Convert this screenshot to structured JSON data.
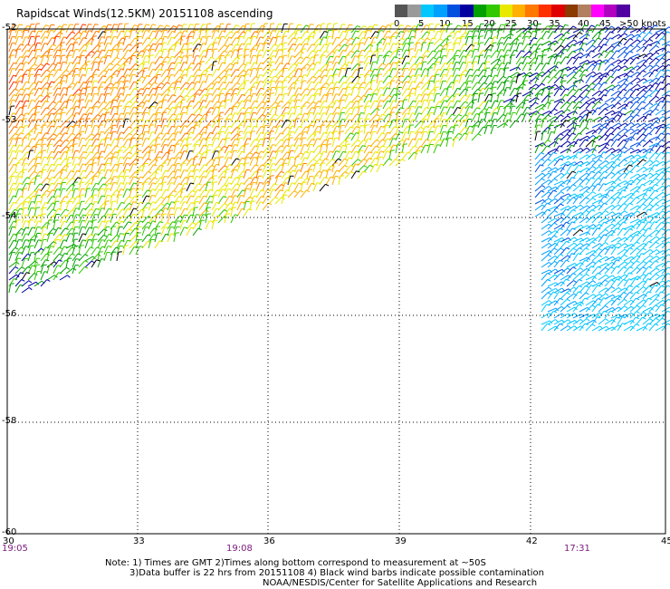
{
  "title": "Rapidscat Winds(12.5KM) 20151108 ascending",
  "colorbar": {
    "colors": [
      "#555555",
      "#9a9a9a",
      "#00c8ff",
      "#00a0ff",
      "#0050e0",
      "#0000a0",
      "#00a000",
      "#30c800",
      "#e8e800",
      "#ffb000",
      "#ff7800",
      "#ff3000",
      "#e00000",
      "#8b3a00",
      "#b08060",
      "#ff00ff",
      "#b000c0",
      "#5000a0"
    ],
    "labels": [
      "0",
      "5",
      "10",
      "15",
      "20",
      "25",
      "30",
      "35",
      "40",
      "45",
      ">50 knots"
    ],
    "unit": "knots"
  },
  "axes": {
    "lat_labels": [
      "-52",
      "-53",
      "-54",
      "-56",
      "-58",
      "-60"
    ],
    "lon_labels": [
      "30",
      "33",
      "36",
      "39",
      "42",
      "45"
    ],
    "time_labels": [
      "19:05",
      "19:08",
      "17:31"
    ]
  },
  "notes": {
    "line1": "Note: 1) Times are GMT 2)Times along bottom correspond to measurement at ~50S",
    "line2": "3)Data buffer is 22 hrs from 20151108 4) Black wind barbs indicate possible contamination",
    "line3": "NOAA/NESDIS/Center for Satellite Applications and Research"
  },
  "map_data": {
    "lon_range": [
      30,
      45
    ],
    "lat_range": [
      -52,
      -60
    ],
    "grid": true,
    "wind_field_description": "dense wind barbs colored by speed: strong (20-35 kt) in north/west, weaker (5-15 kt) in east"
  }
}
